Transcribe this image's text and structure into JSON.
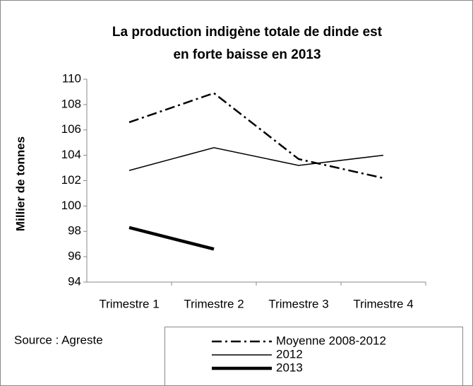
{
  "chart_data": {
    "type": "line",
    "title": [
      "La production indigène totale de dinde  est",
      "en forte baisse en 2013"
    ],
    "y_label": "Millier de tonnes",
    "annotation": "Source : Agreste",
    "categories": [
      "Trimestre 1",
      "Trimestre 2",
      "Trimestre 3",
      "Trimestre 4"
    ],
    "series": [
      {
        "name": "Moyenne 2008-2012",
        "color": "#000000",
        "dash": "dashdot",
        "width": 2.5,
        "values": [
          106.6,
          108.9,
          103.7,
          102.2
        ]
      },
      {
        "name": "2012",
        "color": "#000000",
        "dash": "solid",
        "width": 1.5,
        "values": [
          102.8,
          104.6,
          103.2,
          104.0
        ]
      },
      {
        "name": "2013",
        "color": "#000000",
        "dash": "solid",
        "width": 4.5,
        "values": [
          98.3,
          96.6,
          null,
          null
        ]
      }
    ],
    "ylim": [
      94,
      110
    ],
    "yticks": [
      94,
      96,
      98,
      100,
      102,
      104,
      106,
      108,
      110
    ],
    "grid": false
  }
}
